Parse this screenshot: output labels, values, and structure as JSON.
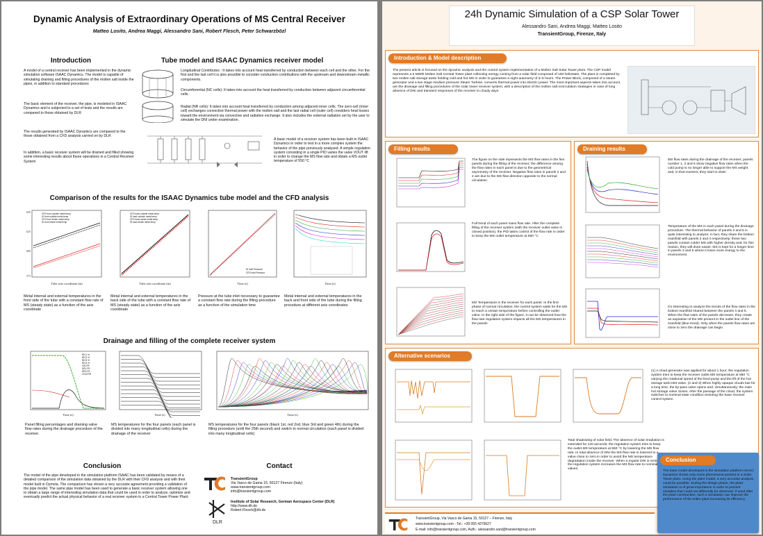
{
  "left": {
    "title": "Dynamic Analysis of Extraordinary Operations of MS Central Receiver",
    "authors": "Matteo Losito, Andrea Maggi, Alessandro Sani, Robert Flesch, Peter Schwarzbözl",
    "intro_heading": "Introduction",
    "intro_p1": "A model of a central receiver has been implemented in the dynamic simulation software ISAAC Dynamics. The model is capable of simulating draining and filling procedures of the molten salt inside the pipes, in addition to standard procedures",
    "intro_p2": "The basic element of the receiver, the pipe, is modeled in ISAAC Dynamics and is subjected to a set of tests and the results are compared to those obtained by DLR",
    "intro_p3": "The results generated by ISAAC Dynamics are compared to the those obtained from a CFD analysis carried on by DLR",
    "intro_p4": "In addition, a basic receiver system will be drained and filled showing some interesting results about these operations in a Central Receiver System",
    "tube_heading": "Tube model and ISAAC Dynamics receiver model",
    "tube_p1": "Longitudinal Contributes : It takes into account heat transferred by conduction between each cell and the other. For the first and the last cell it is also possible to consider conduction contributions with the upstream and downstream metallic components.",
    "tube_p2": "Circumferential (NC cells): It takes into account the heat transferred by conduction between adjacent circumferential cells.",
    "tube_p3": "Radial (NR cells): It takes into account heat transferred by conduction among adjacent inner cells. The zero-cell (inner cell) exchanges convective thermal power with the molten salt and the last radial cell (outer cell) considers heat losses toward the environment via convective and radiative exchange. It also includes the external radiation set by the user to simulate the DNI under examination.",
    "tube_p4": "A basic model of a receiver system has been built in ISAAC Dynamics in order to test in a more complex system the behavior of the pipe previously analyzed. A simple regulation system consisting in a single PID varies the valve VOUT lift in order to change the MS flow rate and obtain a MS outlet temperature of 550 °C",
    "comparison_heading": "Comparison of the results for the ISAAC Dynamics tube model and the CFD analysis",
    "cap1": "Metal internal and external temperatures in the front side of the tube with a constant flow rate of MS (steady state) as a function of the axis coordinate",
    "cap2": "Metal internal and external temperatures in the back side of the tube with a constant flow rate of MS (steady state) as a function of the axis coordinate",
    "cap3": "Pressure at the tube inlet necessary to guarantee a constant flow rate during the filling procedure as a function of the simulation time",
    "cap4": "Metal internal and external temperatures in the back and front side of the tube during the filling procedure at different axis coordinates",
    "drain_heading": "Drainage and filling of the complete receiver system",
    "cap5": "Panel filling percentages and draining valve flow rates during the drainage procedure of the receiver.",
    "cap6": "MS temperatures for the four panels (each panel is divided into many longitudinal cells) during the drainage of the receiver",
    "cap7": "MS temperatures for the four panels (black 1st, red 2nd, blue 3rd and green 4th) during the filling procedure (until the 25th second) and switch to normal circulation (each panel is divided into many longitudinal cells)",
    "conclusion_heading": "Conclusion",
    "conclusion_text": "The model of the pipe developed in the simulation platform ISAAC has been validated by means of a detailed comparison of the simulation data obtained by the DLR with their CFD analysis and with their model built in Dymola. The comparison has shown a very accurate agreement providing a validation of the pipe model. The same pipe model has been used to generate a basic receiver system allowing one to obtain a large range of interesting simulation data that could be used in order to analyze, optimize and eventually predict the actual physical behavior of a real receiver system in a Central Tower Power Plant.",
    "contact_heading": "Contact",
    "tg_name": "TransientGroup",
    "tg_addr": "Via Vasco de Gama 15, 50127 Firenze (Italy)",
    "tg_web": "www.transientgroup.com",
    "tg_mail": "info@transientgroup.com",
    "dlr_name": "Institute of Solar Research, German Aerospace Center (DLR)",
    "dlr_web": "http://www.dlr.de",
    "dlr_mail": "Robert.Flesch@dlr.de",
    "dlr_logo": "DLR"
  },
  "right": {
    "title": "24h Dynamic Simulation of a CSP Solar Tower",
    "authors": "Alessandro Sani, Andrea Maggi, Matteo Losito",
    "org": "TransientGroup, Firenze, Italy",
    "intro_heading": "Introduction & Model description",
    "intro_text": "The present article is focused on the dynamic analysis and the control system implementation of a Molten Salt Solar Tower plant. The CSP model represents a 5 MWth Molten Salt Central Tower plant collecting energy coming from a solar field composed of 100 heliostats. The plant is completed by two molten salt storage tanks holding cold and hot MS in order to guarantee a night autonomy of 3÷5 hours. The Power Block, composed of a steam generator and a two stage medium pressure Steam Turbine, converts thermal power into electric power. The most important aspects taken into account are the drainage and filling procedures of the solar tower receiver system, with a description of the molten salt recirculation strategies in case of long absence of DNI and transient responses of the receiver to cloudy days.",
    "filling_heading": "Filling results",
    "fill1": "The figure on the side represents the MS flow rates in the five panels during the filling of the receiver; the difference among the flow rates in each panel is due to the geometrical asymmetry of the receiver. Negative flow rates in panels 2 and 4 are due to the MS flow direction opposite to the normal circulation",
    "fill2": "Full trend of each panel mass flow rate. After the complete filling of the receiver system (with the receiver outlet valve in closed position), the PID takes control of the flow rate in order to keep the MS outlet temperature at 550 °C",
    "fill3": "MS Temperature in the receiver for each panel. In the first phase of normal circulation, the control system waits for the MS to reach a certain temperature before controlling the outlet valve. In the right side of the figure, it can be observed how the flow rate regulation system impacts all the MS temperatures in the panels",
    "draining_heading": "Draining results",
    "drain1": "MS flow rates during the drainage of the receiver; panels number 1, 3 and 5 show negative flow rates when the cold pump is no longer able to support the MS weight and, in that moment, they start to drain",
    "drain2": "Temperature of the MS in each panel during the drainage procedure. The thermal behavior of panels 3 and 5 is quite interesting to analyze; in fact, they share the bottom manifold with panels 2 and 4 respectively; these two panels contain colder MS with higher density and, for this reason, they will drain easier. MS is kept for a longer time in panels 3 and 5 where it loses more energy to the environment.",
    "drain3": "It's interesting to analyze the trends of the flow rates in the bottom manifold shared between the panels 4 and 5. When the flow rates of the panels decrease, they create an aspiration of the MS present in the outlet line of the manifold (blue trend). Only when the panels flow rates are close to zero the drainage can begin.",
    "alt_heading": "Alternative scenarios",
    "alt1": "(1) A cloud generator was applied for about 1 hour; the regulation system tries to keep the receiver outlet MS temperature at 550 °C varying the rotational speed of the feed pump and the lift of the hot storage tank inlet valve. (2 and 3) When highly opaque clouds last for a long time, the by-pass valve opens and, simultaneously, the main hot storage valve closes. After the passage of the cloud, the system switches to nominal state condition restoring the base receiver control system",
    "alt2": "Total shadowing of solar field. The absence of solar irradiation is extended for 120 seconds; the regulation system tries to keep the outlet MS temperature at 550 °C by lowering the MS flow rate. In total absence of DNI the MS flow rate is lowered to a value close to zero in order to avoid the MS temperature degradation inside the receiver. When a regular DNI is restored, the regulation system increases the MS flow rate to nominal values",
    "concl_heading": "Conclusion",
    "concl_text": "The base model developed in the simulation platform ISAAC Dynamics shows only some phenomena present in a Solar Tower plant. Using the plant model, a very accurate analysis could be possible. During the design phase, the plant simulation is of great importance in order to prevent mistakes that could not differently be observed. If used after the plant construction, such a simulation can improve the performance of the entire plant increasing its efficiency",
    "footer1": "TransientGroup, Via Vasco de Gama 15, 50127 – Firenze, Italy",
    "footer2": "www.transientgroup.com - Tel.: +39 055 4379627",
    "footer3": "E-mail: info@transientgroup.com, Auth.: alessandro.sani@transientgroup.com"
  },
  "charts": {
    "c1_xlabel": "Tube axis coordinate (m)",
    "c1_ylabel": "Temperature (°C)",
    "c1_yticks": [
      "575",
      "600",
      "625",
      "650"
    ],
    "c1_xticks": [
      "0",
      "1",
      "2",
      "3",
      "4",
      "5",
      "6"
    ],
    "c1_legend": [
      "CFD front outside metal temp",
      "ID front outside metal temp",
      "CFD front inside metal temp",
      "ID front inside metal temp"
    ],
    "c2_xlabel": "Tube axis coordinate (m)",
    "c2_ylabel": "Temperature (°C)",
    "c2_legend": [
      "CFD back outside metal temp",
      "ID back outside metal temp",
      "CFD back inside metal temp",
      "ID back inside metal temp"
    ],
    "c3_xlabel": "Time (s)",
    "c3_ylabel": "Pressure (kPa)",
    "c3_legend": [
      "ID Inlet Pressure",
      "CFD Inlet Pressure"
    ],
    "c4_xlabel": "Time (s)",
    "c4_ylabel": "Temperature (°C)",
    "c5_xlabel": "Time (s)",
    "c5_ylabel": "Filling percentage (%)",
    "c5_legend": [
      "RIC1 %",
      "RIC2 %",
      "RIC3 %",
      "RIC4 %",
      "VIN FR",
      "DR1 FR",
      "DR2 FR",
      "VOUTFR"
    ],
    "c6_xlabel": "Time (s)",
    "c6_ylabel": "Temperature (°C)",
    "c7_xlabel": "Time (s)",
    "c7_ylabel": "Temperature (°C)"
  },
  "colors": {
    "accent_orange": "#e07b27",
    "panel_right_bg": "#fdf3e8",
    "concl_blue": "#4f89c9"
  }
}
